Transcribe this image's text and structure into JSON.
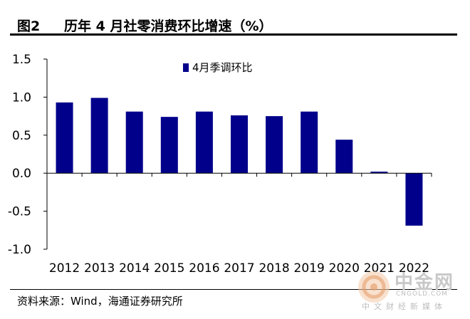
{
  "header": {
    "figure_number": "图2",
    "title": "历年 4 月社零消费环比增速（%）"
  },
  "chart_data": {
    "type": "bar",
    "title": "历年 4 月社零消费环比增速（%）",
    "categories": [
      "2012",
      "2013",
      "2014",
      "2015",
      "2016",
      "2017",
      "2018",
      "2019",
      "2020",
      "2021",
      "2022"
    ],
    "series": [
      {
        "name": "4月季调环比",
        "values": [
          0.93,
          0.99,
          0.81,
          0.74,
          0.81,
          0.76,
          0.75,
          0.81,
          0.44,
          0.02,
          -0.69
        ]
      }
    ],
    "y_ticks": [
      "1.5",
      "1.0",
      "0.5",
      "0.0",
      "-0.5",
      "-1.0"
    ],
    "ylim": [
      -1.0,
      1.5
    ],
    "xlabel": "",
    "ylabel": "",
    "grid": false,
    "legend_position": "top-center",
    "bar_color": "#00008B"
  },
  "source": "资料来源：Wind，海通证券研究所",
  "watermark": {
    "name": "中金网",
    "url": "CNGOLD.COM",
    "subtitle": "中文财经新媒体"
  }
}
